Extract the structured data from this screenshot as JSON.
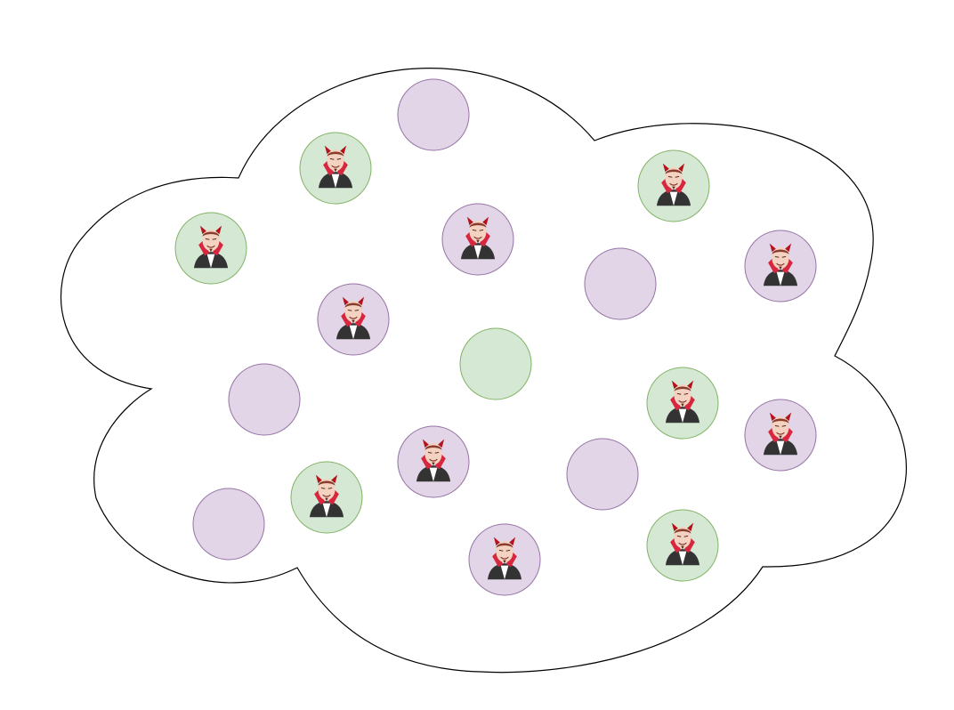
{
  "colors": {
    "background": "#ffffff",
    "cloud_stroke": "#000000",
    "purple_fill": "#e1d5e7",
    "purple_stroke": "#9673a6",
    "green_fill": "#d5e8d4",
    "green_stroke": "#82b366",
    "devil_skin": "#f3d2c1",
    "devil_cape": "#333333",
    "devil_collar": "#d7263d",
    "devil_horn": "#b5121b",
    "devil_shirt": "#ffffff"
  },
  "node_kinds": [
    "purple",
    "green"
  ],
  "icon": "devil-icon",
  "nodes": [
    {
      "id": "n01",
      "kind": "purple",
      "devil": false
    },
    {
      "id": "n02",
      "kind": "green",
      "devil": true
    },
    {
      "id": "n03",
      "kind": "green",
      "devil": true
    },
    {
      "id": "n04",
      "kind": "green",
      "devil": true
    },
    {
      "id": "n05",
      "kind": "purple",
      "devil": true
    },
    {
      "id": "n06",
      "kind": "purple",
      "devil": false
    },
    {
      "id": "n07",
      "kind": "purple",
      "devil": true
    },
    {
      "id": "n08",
      "kind": "purple",
      "devil": true
    },
    {
      "id": "n09",
      "kind": "green",
      "devil": false
    },
    {
      "id": "n10",
      "kind": "purple",
      "devil": false
    },
    {
      "id": "n11",
      "kind": "green",
      "devil": true
    },
    {
      "id": "n12",
      "kind": "purple",
      "devil": true
    },
    {
      "id": "n13",
      "kind": "purple",
      "devil": true
    },
    {
      "id": "n14",
      "kind": "purple",
      "devil": false
    },
    {
      "id": "n15",
      "kind": "green",
      "devil": true
    },
    {
      "id": "n16",
      "kind": "purple",
      "devil": false
    },
    {
      "id": "n17",
      "kind": "purple",
      "devil": true
    },
    {
      "id": "n18",
      "kind": "green",
      "devil": true
    }
  ]
}
